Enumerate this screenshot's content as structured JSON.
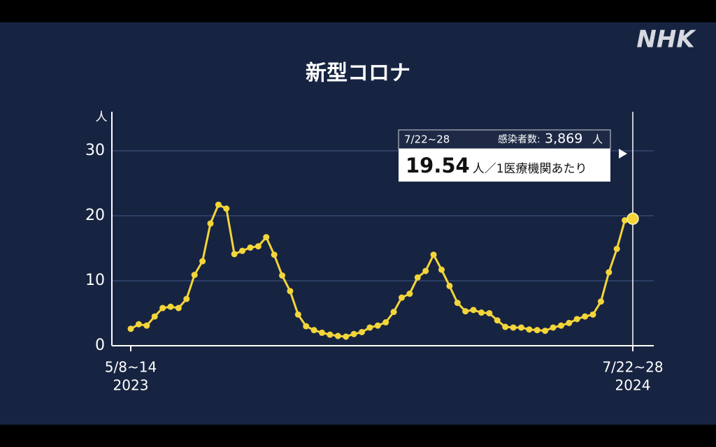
{
  "logo": "NHK",
  "chart_data": {
    "type": "line",
    "title": "新型コロナ",
    "y_unit": "人",
    "categories": [
      "5/8~14",
      null,
      null,
      null,
      null,
      null,
      null,
      null,
      null,
      null,
      null,
      null,
      null,
      null,
      null,
      null,
      null,
      null,
      null,
      null,
      null,
      null,
      null,
      null,
      null,
      null,
      null,
      null,
      null,
      null,
      null,
      null,
      null,
      null,
      null,
      null,
      null,
      null,
      null,
      null,
      null,
      null,
      null,
      null,
      null,
      null,
      null,
      null,
      null,
      null,
      null,
      null,
      null,
      null,
      null,
      null,
      null,
      null,
      null,
      null,
      null,
      null,
      null,
      "7/22~28"
    ],
    "category_years": [
      "2023",
      null,
      null,
      null,
      null,
      null,
      null,
      null,
      null,
      null,
      null,
      null,
      null,
      null,
      null,
      null,
      null,
      null,
      null,
      null,
      null,
      null,
      null,
      null,
      null,
      null,
      null,
      null,
      null,
      null,
      null,
      null,
      null,
      null,
      null,
      null,
      null,
      null,
      null,
      null,
      null,
      null,
      null,
      null,
      null,
      null,
      null,
      null,
      null,
      null,
      null,
      null,
      null,
      null,
      null,
      null,
      null,
      null,
      null,
      null,
      null,
      null,
      null,
      "2024"
    ],
    "values": [
      2.6,
      3.3,
      3.1,
      4.5,
      5.8,
      6.0,
      5.8,
      7.2,
      10.9,
      13.0,
      18.8,
      21.7,
      21.1,
      14.1,
      14.6,
      15.1,
      15.3,
      16.7,
      14.0,
      10.8,
      8.4,
      4.8,
      3.0,
      2.4,
      2.0,
      1.7,
      1.5,
      1.4,
      1.8,
      2.1,
      2.8,
      3.1,
      3.6,
      5.2,
      7.4,
      8.0,
      10.5,
      11.5,
      14.0,
      11.7,
      9.2,
      6.6,
      5.3,
      5.5,
      5.1,
      5.0,
      3.9,
      2.9,
      2.8,
      2.8,
      2.5,
      2.4,
      2.3,
      2.8,
      3.1,
      3.5,
      4.1,
      4.5,
      4.8,
      6.8,
      11.3,
      14.9,
      19.3,
      19.54
    ],
    "color": "#f3d53a",
    "ylim": [
      0,
      36
    ],
    "yticks": [
      0,
      10,
      20,
      30
    ],
    "grid": true,
    "annotation": {
      "cases_label": "感染者数:",
      "cases": {
        "value": 3869,
        "label": "3,869"
      },
      "cases_unit": "人",
      "per_label": "人／1医療機関あたり"
    }
  }
}
